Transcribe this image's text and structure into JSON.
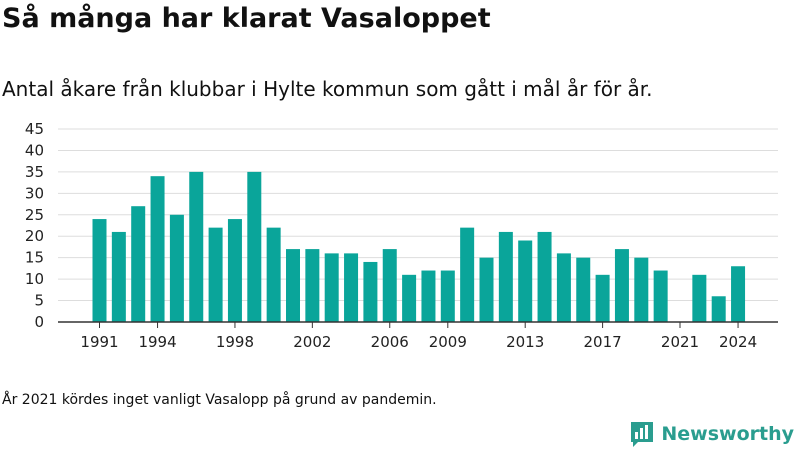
{
  "header": {
    "title": "Så många har klarat Vasaloppet",
    "subtitle": "Antal åkare från klubbar i Hylte kommun som gått i mål år för år."
  },
  "footer": {
    "note": "År 2021 kördes inget vanligt Vasalopp på grund av pandemin.",
    "brand": "Newsworthy"
  },
  "colors": {
    "bar": "#0aa59a",
    "grid": "#dddddd",
    "axis": "#333333",
    "brand": "#2a9d8f"
  },
  "chart_data": {
    "type": "bar",
    "x": [
      1991,
      1992,
      1993,
      1994,
      1995,
      1996,
      1997,
      1998,
      1999,
      2000,
      2001,
      2002,
      2003,
      2004,
      2005,
      2006,
      2007,
      2008,
      2009,
      2010,
      2011,
      2012,
      2013,
      2014,
      2015,
      2016,
      2017,
      2018,
      2019,
      2020,
      2021,
      2022,
      2023,
      2024
    ],
    "values": [
      24,
      21,
      27,
      34,
      25,
      35,
      22,
      24,
      35,
      22,
      17,
      17,
      16,
      16,
      14,
      17,
      11,
      12,
      12,
      22,
      15,
      21,
      19,
      21,
      16,
      15,
      11,
      17,
      15,
      12,
      null,
      11,
      6,
      13
    ],
    "x_tick_labels": [
      "1991",
      "1994",
      "1998",
      "2002",
      "2006",
      "2009",
      "2013",
      "2017",
      "2021",
      "2024"
    ],
    "y_ticks": [
      0,
      5,
      10,
      15,
      20,
      25,
      30,
      35,
      40,
      45
    ],
    "ylim": [
      0,
      45
    ],
    "grid": true,
    "legend": "none"
  }
}
